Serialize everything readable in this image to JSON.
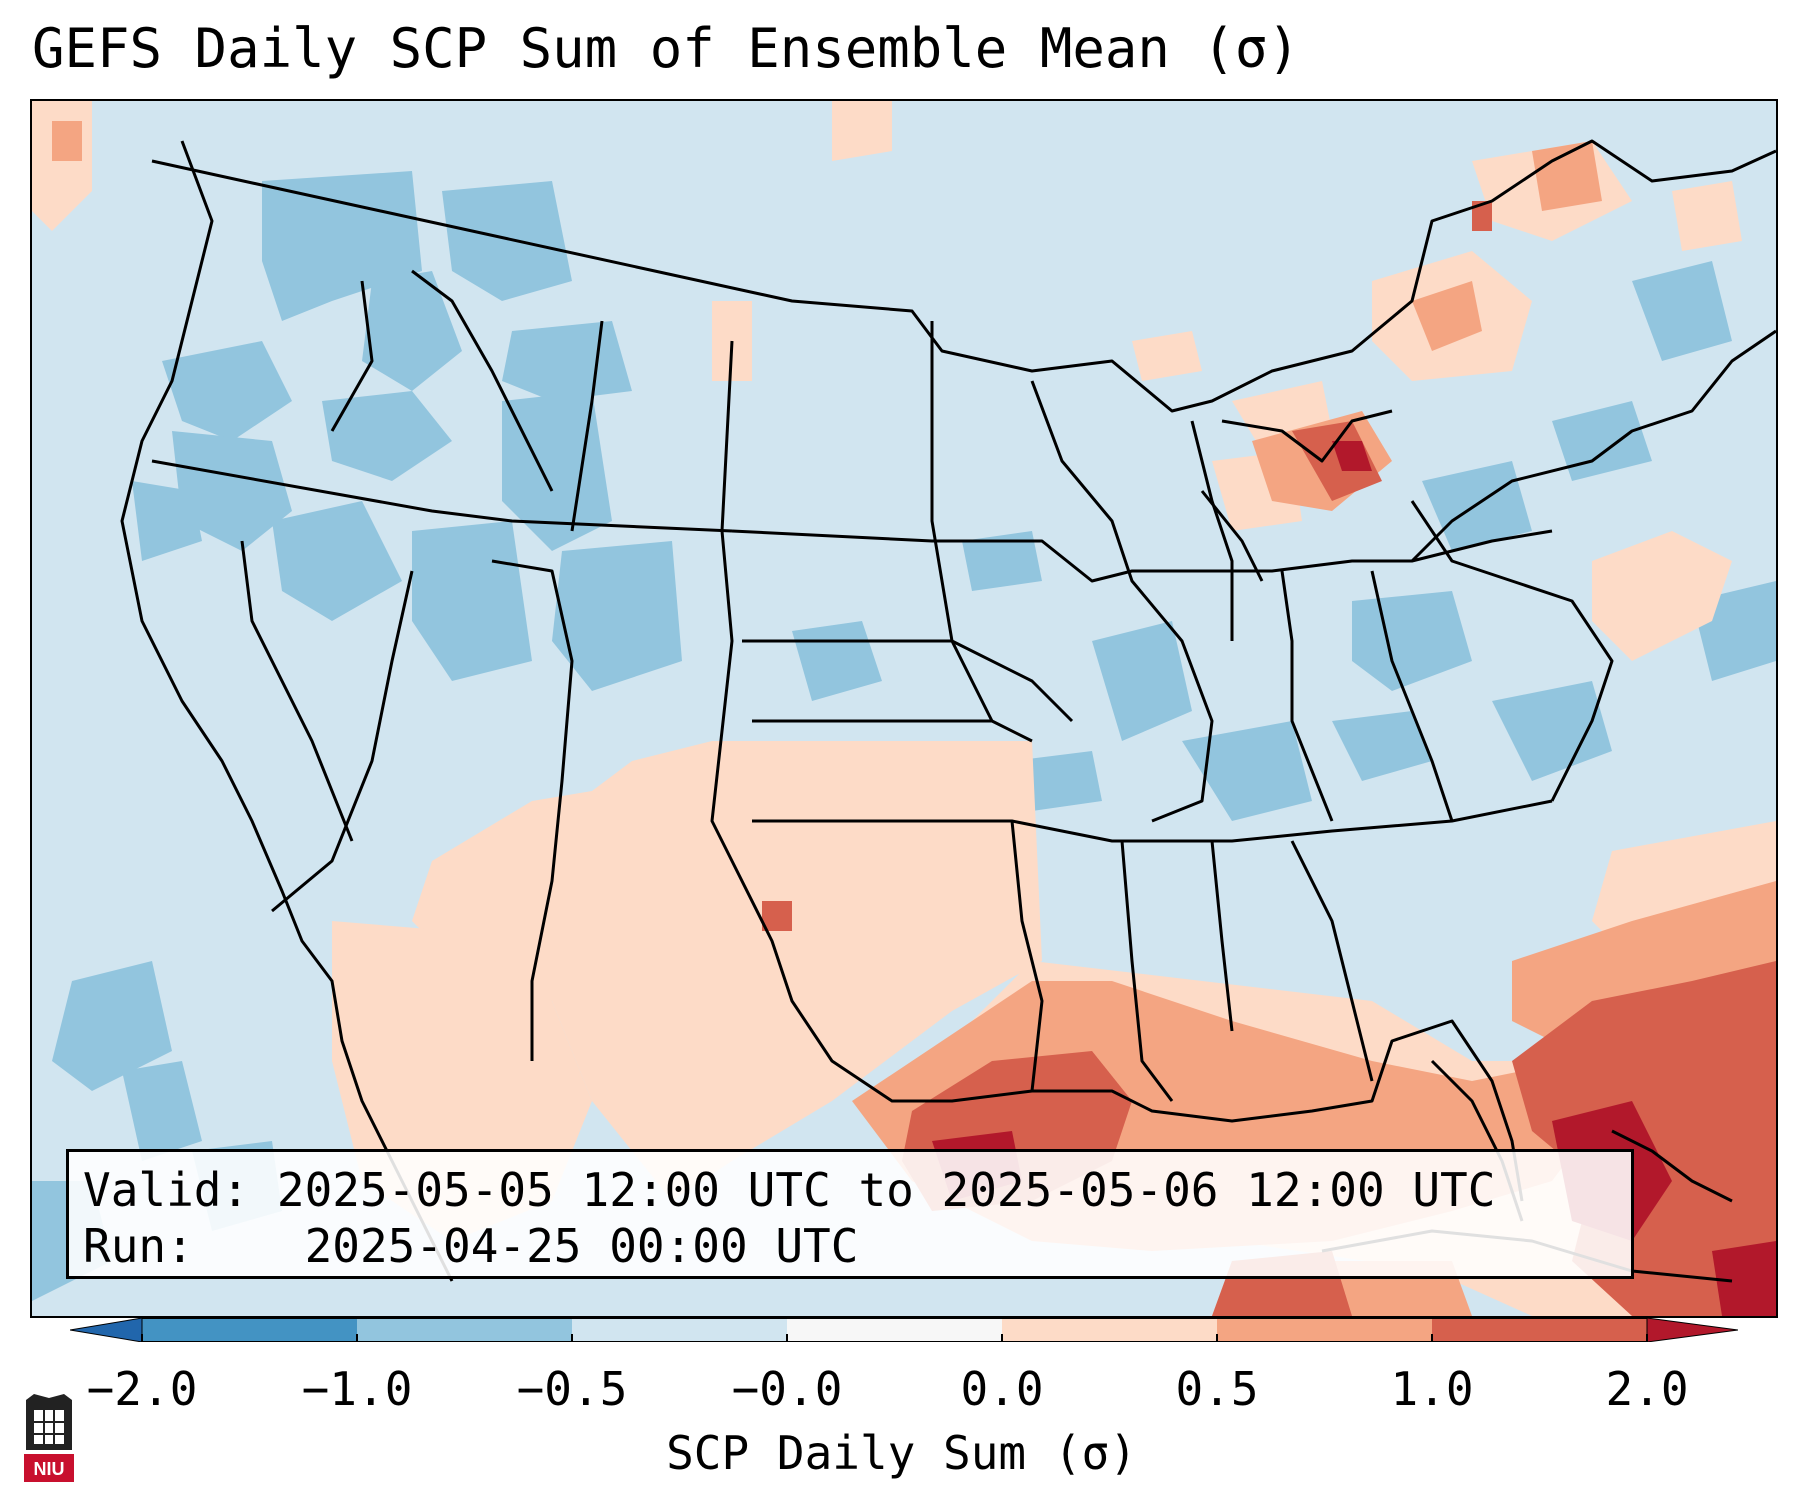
{
  "title": "GEFS Daily SCP Sum of Ensemble Mean (σ)",
  "info_box": {
    "valid_label": "Valid:",
    "valid_value": "2025-05-05 12:00 UTC to 2025-05-06 12:00 UTC",
    "run_label": "Run:",
    "run_value": "2025-04-25 00:00 UTC"
  },
  "colorbar": {
    "label": "SCP Daily Sum (σ)",
    "ticks": [
      "−2.0",
      "−1.0",
      "−0.5",
      "−0.0",
      "0.0",
      "0.5",
      "1.0",
      "2.0"
    ],
    "bins": [
      {
        "range": "< -2.0",
        "color": "#2166ac"
      },
      {
        "range": "-2.0 to -1.0",
        "color": "#4393c3"
      },
      {
        "range": "-1.0 to -0.5",
        "color": "#92c5de"
      },
      {
        "range": "-0.5 to -0.0",
        "color": "#d1e5f0"
      },
      {
        "range": "-0.0 to 0.0",
        "color": "#f7f7f7"
      },
      {
        "range": "0.0 to 0.5",
        "color": "#fddbc7"
      },
      {
        "range": "0.5 to 1.0",
        "color": "#f4a582"
      },
      {
        "range": "1.0 to 2.0",
        "color": "#d6604d"
      },
      {
        "range": "> 2.0",
        "color": "#b2182b"
      }
    ]
  },
  "logo_text": "NIU"
}
